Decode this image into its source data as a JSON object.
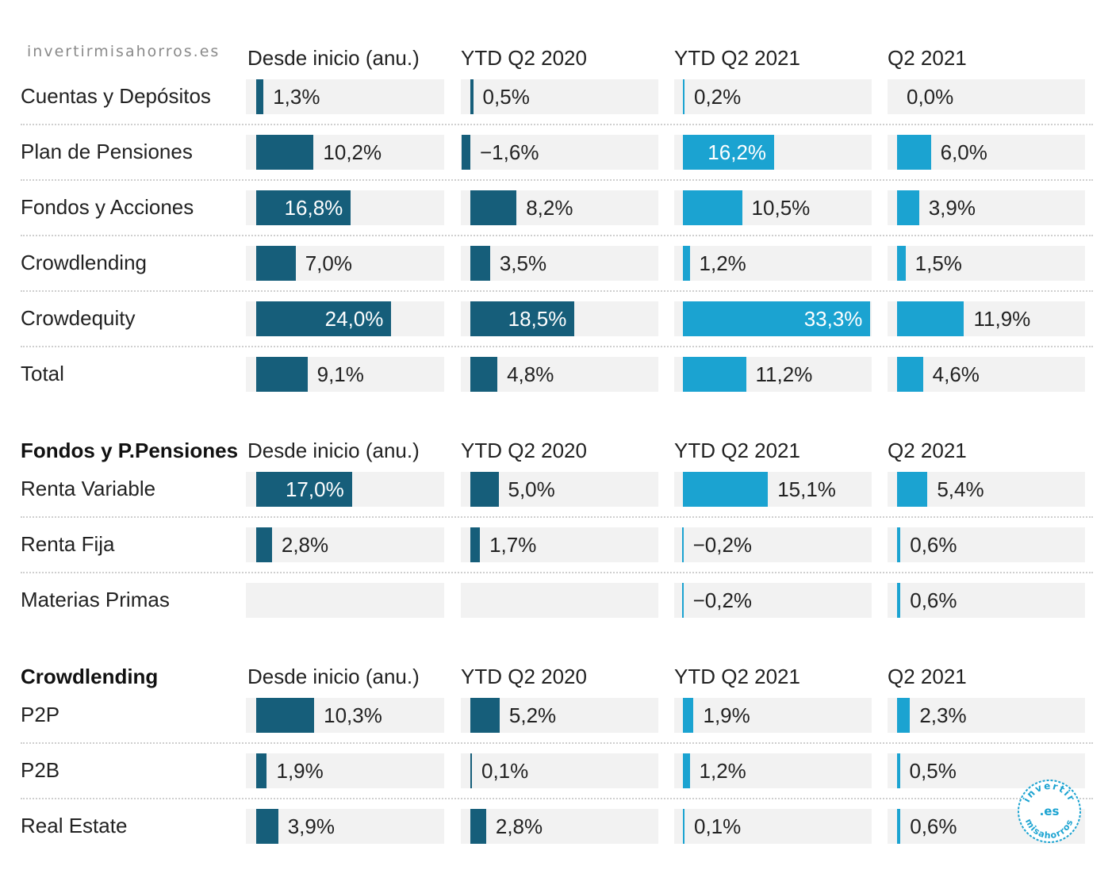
{
  "watermark": "invertirmisahorros.es",
  "colors": {
    "dark": "#165e7a",
    "light": "#1ba3d1",
    "track": "#f2f2f2"
  },
  "chart_data": [
    {
      "type": "bar",
      "title": "",
      "columns": [
        "Desde inicio (anu.)",
        "YTD Q2 2020",
        "YTD Q2 2021",
        "Q2 2021"
      ],
      "rows": [
        {
          "label": "Cuentas y Depósitos",
          "values": [
            1.3,
            0.5,
            0.2,
            0.0
          ],
          "labels": [
            "1,3%",
            "0,5%",
            "0,2%",
            "0,0%"
          ]
        },
        {
          "label": "Plan de Pensiones",
          "values": [
            10.2,
            -1.6,
            16.2,
            6.0
          ],
          "labels": [
            "10,2%",
            "−1,6%",
            "16,2%",
            "6,0%"
          ]
        },
        {
          "label": "Fondos y Acciones",
          "values": [
            16.8,
            8.2,
            10.5,
            3.9
          ],
          "labels": [
            "16,8%",
            "8,2%",
            "10,5%",
            "3,9%"
          ]
        },
        {
          "label": "Crowdlending",
          "values": [
            7.0,
            3.5,
            1.2,
            1.5
          ],
          "labels": [
            "7,0%",
            "3,5%",
            "1,2%",
            "1,5%"
          ]
        },
        {
          "label": "Crowdequity",
          "values": [
            24.0,
            18.5,
            33.3,
            11.9
          ],
          "labels": [
            "24,0%",
            "18,5%",
            "33,3%",
            "11,9%"
          ]
        },
        {
          "label": "Total",
          "values": [
            9.1,
            4.8,
            11.2,
            4.6
          ],
          "labels": [
            "9,1%",
            "4,8%",
            "11,2%",
            "4,6%"
          ]
        }
      ]
    },
    {
      "type": "bar",
      "title": "Fondos y P.Pensiones",
      "columns": [
        "Desde inicio (anu.)",
        "YTD Q2 2020",
        "YTD Q2 2021",
        "Q2 2021"
      ],
      "rows": [
        {
          "label": "Renta Variable",
          "values": [
            17.0,
            5.0,
            15.1,
            5.4
          ],
          "labels": [
            "17,0%",
            "5,0%",
            "15,1%",
            "5,4%"
          ]
        },
        {
          "label": "Renta Fija",
          "values": [
            2.8,
            1.7,
            -0.2,
            0.6
          ],
          "labels": [
            "2,8%",
            "1,7%",
            "−0,2%",
            "0,6%"
          ]
        },
        {
          "label": "Materias Primas",
          "values": [
            null,
            null,
            -0.2,
            0.6
          ],
          "labels": [
            "",
            "",
            "−0,2%",
            "0,6%"
          ]
        }
      ]
    },
    {
      "type": "bar",
      "title": "Crowdlending",
      "columns": [
        "Desde inicio (anu.)",
        "YTD Q2 2020",
        "YTD Q2 2021",
        "Q2 2021"
      ],
      "rows": [
        {
          "label": "P2P",
          "values": [
            10.3,
            5.2,
            1.9,
            2.3
          ],
          "labels": [
            "10,3%",
            "5,2%",
            "1,9%",
            "2,3%"
          ]
        },
        {
          "label": "P2B",
          "values": [
            1.9,
            0.1,
            1.2,
            0.5
          ],
          "labels": [
            "1,9%",
            "0,1%",
            "1,2%",
            "0,5%"
          ]
        },
        {
          "label": "Real Estate",
          "values": [
            3.9,
            2.8,
            0.1,
            0.6
          ],
          "labels": [
            "3,9%",
            "2,8%",
            "0,1%",
            "0,6%"
          ]
        }
      ]
    }
  ],
  "stamp": {
    "top": "invertir",
    "middle": ".es",
    "bottom": "misahorros"
  }
}
